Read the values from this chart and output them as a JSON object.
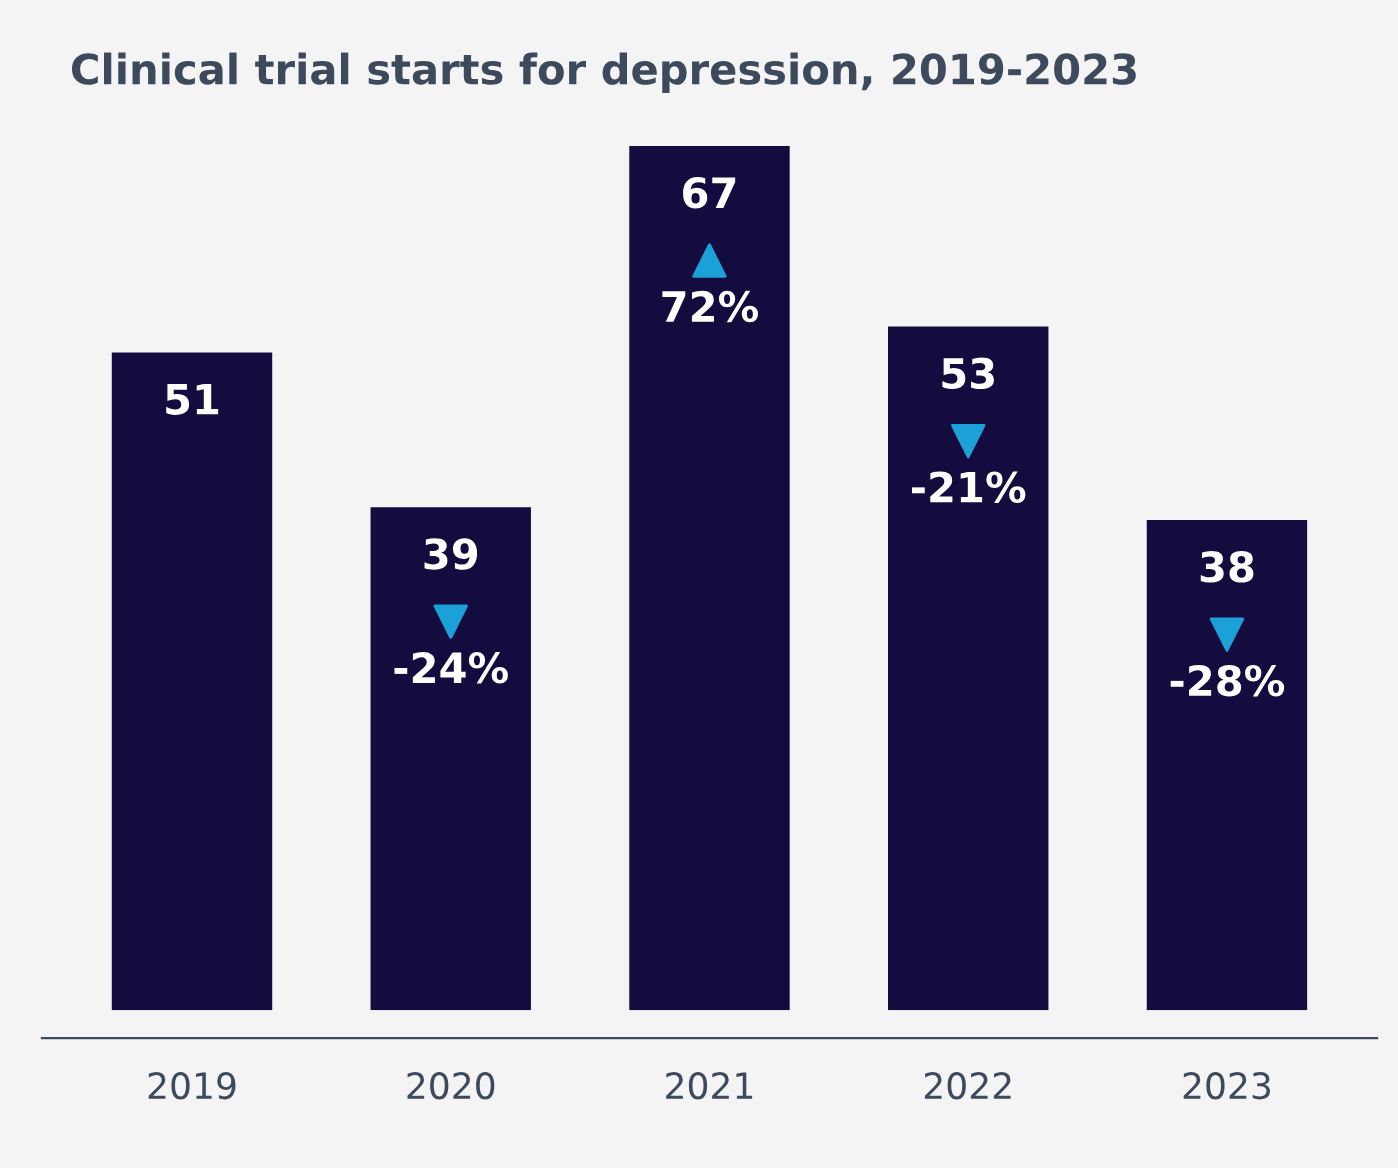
{
  "chart_data": {
    "type": "bar",
    "title": "Clinical trial starts for depression, 2019-2023",
    "categories": [
      "2019",
      "2020",
      "2021",
      "2022",
      "2023"
    ],
    "values": [
      51,
      39,
      67,
      53,
      38
    ],
    "color": "#140c3f",
    "data_labels": true,
    "grid": false,
    "annotations": [
      "-24%",
      "72%",
      "-21%",
      "-28%"
    ]
  }
}
